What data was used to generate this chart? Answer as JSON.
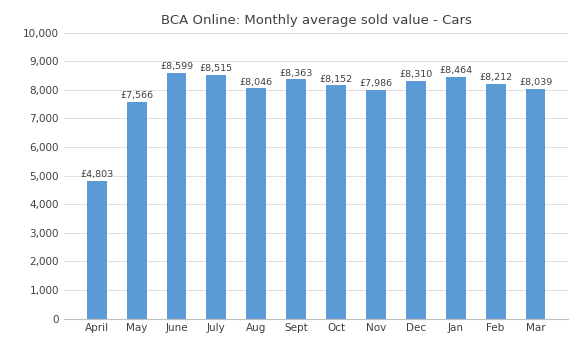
{
  "title": "BCA Online: Monthly average sold value - Cars",
  "categories": [
    "April",
    "May",
    "June",
    "July",
    "Aug",
    "Sept",
    "Oct",
    "Nov",
    "Dec",
    "Jan",
    "Feb",
    "Mar"
  ],
  "values": [
    4803,
    7566,
    8599,
    8515,
    8046,
    8363,
    8152,
    7986,
    8310,
    8464,
    8212,
    8039
  ],
  "labels": [
    "£4,803",
    "£7,566",
    "£8,599",
    "£8,515",
    "£8,046",
    "£8,363",
    "£8,152",
    "£7,986",
    "£8,310",
    "£8,464",
    "£8,212",
    "£8,039"
  ],
  "bar_color": "#5b9bd5",
  "ylim": [
    0,
    10000
  ],
  "yticks": [
    0,
    1000,
    2000,
    3000,
    4000,
    5000,
    6000,
    7000,
    8000,
    9000,
    10000
  ],
  "title_fontsize": 9.5,
  "label_fontsize": 6.8,
  "tick_fontsize": 7.5,
  "background_color": "#ffffff"
}
